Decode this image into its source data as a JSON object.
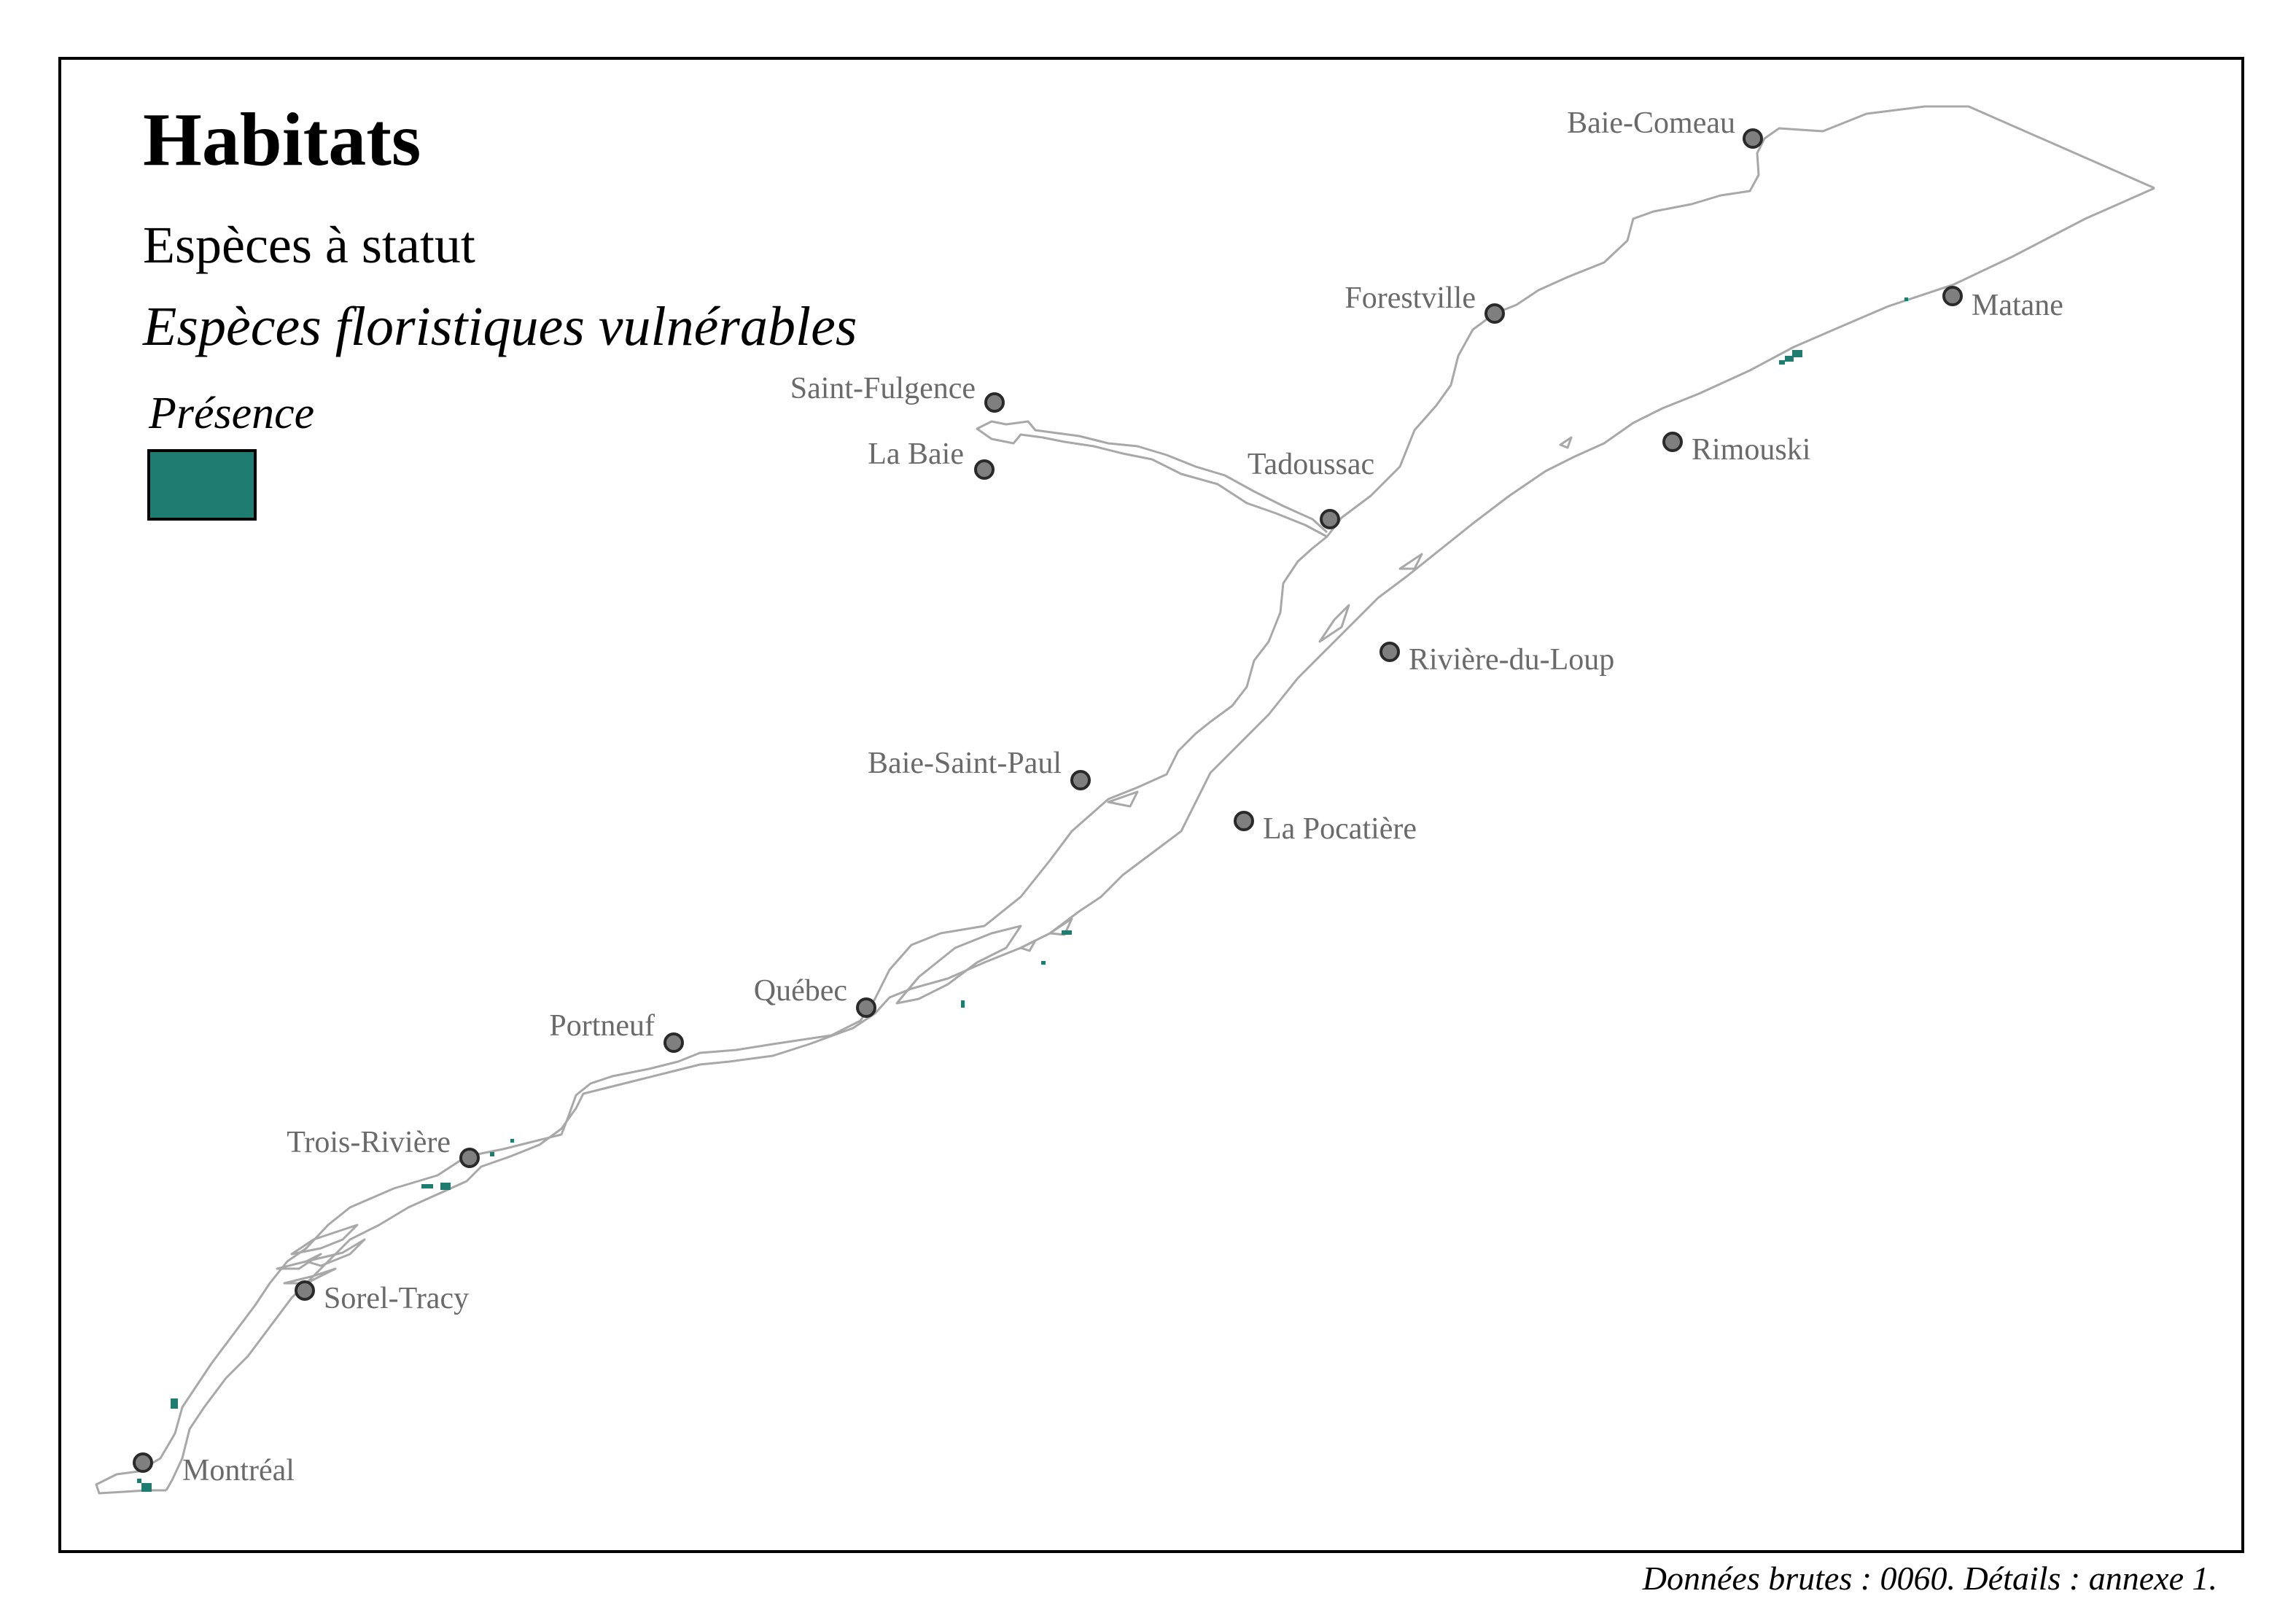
{
  "map": {
    "title": "Habitats",
    "subtitle": "Espèces à statut",
    "subtitle2": "Espèces floristiques vulnérables",
    "legend": {
      "title": "Présence",
      "color": "#1f7c71"
    },
    "cities": [
      {
        "name": "Baie-Comeau",
        "id": "baie-comeau"
      },
      {
        "name": "Forestville",
        "id": "forestville"
      },
      {
        "name": "Matane",
        "id": "matane"
      },
      {
        "name": "Saint-Fulgence",
        "id": "saint-fulgence"
      },
      {
        "name": "La Baie",
        "id": "la-baie"
      },
      {
        "name": "Tadoussac",
        "id": "tadoussac"
      },
      {
        "name": "Rimouski",
        "id": "rimouski"
      },
      {
        "name": "Rivière-du-Loup",
        "id": "riviere-du-loup"
      },
      {
        "name": "Baie-Saint-Paul",
        "id": "baie-saint-paul"
      },
      {
        "name": "La Pocatière",
        "id": "la-pocatiere"
      },
      {
        "name": "Québec",
        "id": "quebec"
      },
      {
        "name": "Portneuf",
        "id": "portneuf"
      },
      {
        "name": "Trois-Rivière",
        "id": "trois-riviere"
      },
      {
        "name": "Sorel-Tracy",
        "id": "sorel-tracy"
      },
      {
        "name": "Montréal",
        "id": "montreal"
      }
    ],
    "credit": "Données brutes : 0060. Détails : annexe 1."
  }
}
